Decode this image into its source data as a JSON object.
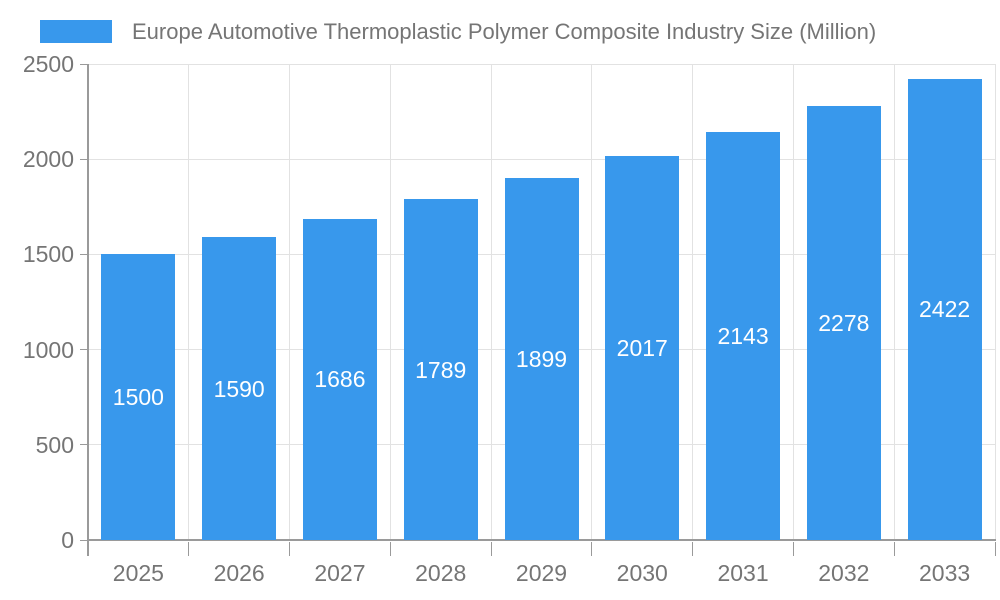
{
  "chart_data": {
    "type": "bar",
    "title": "Europe Automotive Thermoplastic Polymer Composite Industry Size (Million)",
    "series": [
      {
        "name": "Europe Automotive Thermoplastic Polymer Composite Industry Size (Million)",
        "values": [
          1500,
          1590,
          1686,
          1789,
          1899,
          2017,
          2143,
          2278,
          2422
        ]
      }
    ],
    "categories": [
      "2025",
      "2026",
      "2027",
      "2028",
      "2029",
      "2030",
      "2031",
      "2032",
      "2033"
    ],
    "y_ticks": [
      0,
      500,
      1000,
      1500,
      2000,
      2500
    ],
    "ylim": [
      0,
      2500
    ],
    "xlabel": "",
    "ylabel": "",
    "legend_position": "top-left",
    "grid": true,
    "value_labels": "inside-center",
    "colors": {
      "bar": "#3898ec",
      "value_label": "#ffffff",
      "axis_label": "#757575",
      "title": "#757575",
      "grid_line": "#e2e2e2",
      "axis_line": "#9a9a9a",
      "background": "#ffffff"
    }
  }
}
